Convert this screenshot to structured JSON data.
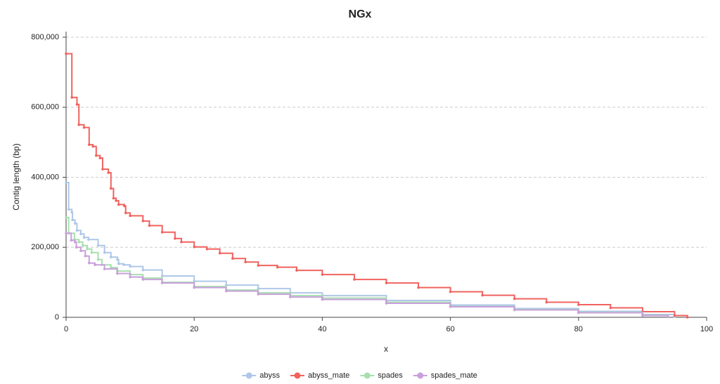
{
  "chart_data": {
    "type": "line",
    "step": true,
    "title": "NGx",
    "x_label": "x",
    "y_label": "Contig length (bp)",
    "xlim": [
      0,
      100
    ],
    "xticks": [
      0,
      20,
      40,
      60,
      80,
      100
    ],
    "ylim": [
      0,
      800000
    ],
    "yticks": [
      0,
      {
        "value": 200000,
        "label": "200,000"
      },
      {
        "value": 400000,
        "label": "400,000"
      },
      {
        "value": 600000,
        "label": "600,000"
      },
      {
        "value": 800000,
        "label": "800,000"
      }
    ],
    "grid": true,
    "legend": "bottom",
    "series": [
      {
        "name": "abyss",
        "color": "#aec7e8",
        "x": [
          0,
          0.4,
          0.9,
          1.0,
          1.4,
          1.7,
          2.3,
          2.8,
          3.5,
          5,
          6,
          7,
          8,
          8.2,
          9,
          10,
          12,
          15,
          20,
          25,
          30,
          35,
          40,
          50,
          60,
          70,
          80,
          90,
          95
        ],
        "values": [
          385000,
          308000,
          300000,
          278000,
          268000,
          248000,
          238000,
          228000,
          222000,
          205000,
          185000,
          172000,
          165000,
          153000,
          150000,
          145000,
          135000,
          118000,
          103000,
          92000,
          82000,
          70000,
          62000,
          48000,
          35000,
          25000,
          17000,
          8000,
          2000
        ]
      },
      {
        "name": "abyss_mate",
        "color": "#f0635f",
        "x": [
          0,
          0.9,
          1.7,
          2.0,
          2.8,
          3.6,
          4.2,
          4.7,
          5.3,
          5.7,
          6.6,
          7.0,
          7.4,
          7.8,
          8.2,
          9.1,
          9.3,
          10,
          12,
          13,
          15,
          17,
          18,
          20,
          22,
          24,
          26,
          28,
          30,
          33,
          36,
          40,
          45,
          50,
          55,
          60,
          65,
          70,
          75,
          80,
          85,
          90,
          95,
          97
        ],
        "values": [
          753000,
          628000,
          608000,
          550000,
          542000,
          493000,
          488000,
          462000,
          455000,
          423000,
          413000,
          368000,
          340000,
          333000,
          322000,
          318000,
          298000,
          290000,
          275000,
          262000,
          243000,
          225000,
          215000,
          201000,
          195000,
          183000,
          168000,
          158000,
          148000,
          143000,
          134000,
          122000,
          108000,
          98000,
          85000,
          73000,
          63000,
          53000,
          43000,
          36000,
          27000,
          16000,
          5000,
          0
        ]
      },
      {
        "name": "spades",
        "color": "#a8dfb0",
        "x": [
          0,
          0.4,
          1.3,
          2.0,
          2.6,
          3.3,
          4,
          5,
          5.6,
          7,
          8,
          10,
          12,
          15,
          20,
          25,
          30,
          35,
          40,
          50,
          60,
          70,
          80,
          90,
          94
        ],
        "values": [
          285000,
          240000,
          222000,
          215000,
          205000,
          195000,
          185000,
          165000,
          150000,
          142000,
          132000,
          122000,
          112000,
          100000,
          88000,
          78000,
          70000,
          62000,
          55000,
          43000,
          31000,
          22000,
          14000,
          6000,
          1000
        ]
      },
      {
        "name": "spades_mate",
        "color": "#c9a0dc",
        "x": [
          0,
          0.8,
          1.4,
          1.6,
          2.3,
          3,
          3.6,
          4.5,
          6,
          8,
          10,
          12,
          15,
          20,
          25,
          30,
          35,
          40,
          50,
          60,
          70,
          80,
          90,
          94
        ],
        "values": [
          240000,
          220000,
          215000,
          200000,
          190000,
          175000,
          155000,
          150000,
          138000,
          125000,
          115000,
          108000,
          98000,
          85000,
          75000,
          66000,
          58000,
          51000,
          40000,
          30000,
          21000,
          13000,
          5000,
          1000
        ]
      }
    ]
  }
}
